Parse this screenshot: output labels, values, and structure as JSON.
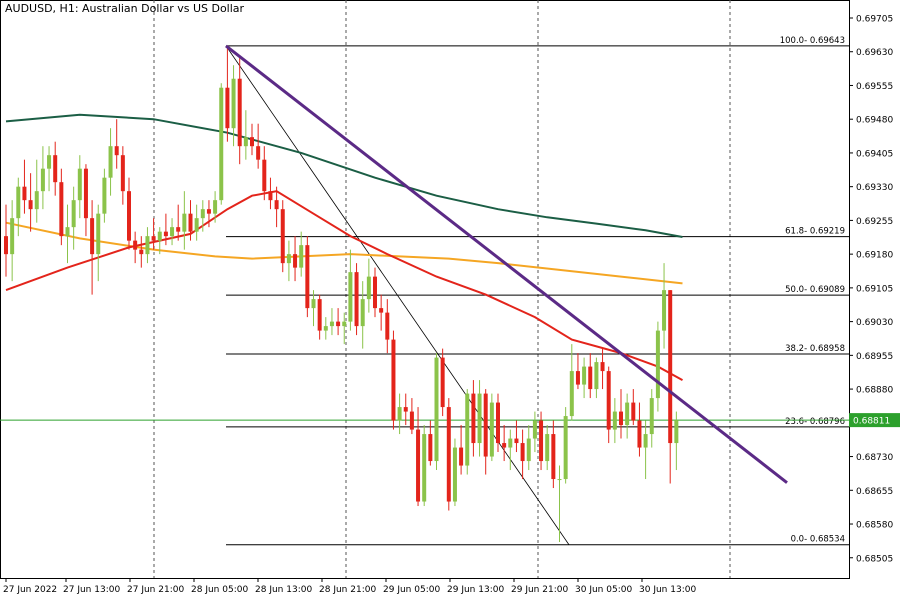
{
  "header": {
    "title": "AUDUSD, H1:  Australian Dollar vs US Dollar"
  },
  "chart_data": {
    "type": "candlestick",
    "symbol": "AUDUSD",
    "timeframe": "H1",
    "ylim": [
      0.6846,
      0.69745
    ],
    "price_ticks": [
      "0.69705",
      "0.69630",
      "0.69555",
      "0.69480",
      "0.69405",
      "0.69330",
      "0.69255",
      "0.69180",
      "0.69105",
      "0.69030",
      "0.68955",
      "0.68880",
      "0.68805",
      "0.68730",
      "0.68655",
      "0.68580",
      "0.68505"
    ],
    "time_labels": [
      "27 Jun 2022",
      "27 Jun 13:00",
      "27 Jun 21:00",
      "28 Jun 05:00",
      "28 Jun 13:00",
      "28 Jun 21:00",
      "29 Jun 05:00",
      "29 Jun 13:00",
      "29 Jun 21:00",
      "30 Jun 05:00",
      "30 Jun 13:00"
    ],
    "current_price": "0.68811",
    "current_price_value": 0.68811,
    "fibonacci": [
      {
        "label": "100.0- 0.69643",
        "price": 0.69643
      },
      {
        "label": "61.8- 0.69219",
        "price": 0.69219
      },
      {
        "label": "50.0- 0.69089",
        "price": 0.69089
      },
      {
        "label": "38.2- 0.68958",
        "price": 0.68958
      },
      {
        "label": "23.6- 0.68796",
        "price": 0.68796
      },
      {
        "label": "0.0- 0.68534",
        "price": 0.68534
      }
    ],
    "fib_start_bar": 36,
    "fib_end_bar": 88,
    "fib_anchor_high": {
      "bar": 36,
      "price": 0.69643
    },
    "fib_anchor_low": {
      "bar": 91,
      "price": 0.68534
    },
    "trendline": {
      "start": {
        "bar": 36,
        "price": 0.69643
      },
      "end": {
        "bar": 127,
        "price": 0.68672
      }
    },
    "bars": [
      {
        "o": 0.6922,
        "h": 0.6929,
        "l": 0.6913,
        "c": 0.6918
      },
      {
        "o": 0.6918,
        "h": 0.693,
        "l": 0.6912,
        "c": 0.6926
      },
      {
        "o": 0.6926,
        "h": 0.6935,
        "l": 0.6922,
        "c": 0.6933
      },
      {
        "o": 0.6933,
        "h": 0.6939,
        "l": 0.6927,
        "c": 0.693
      },
      {
        "o": 0.693,
        "h": 0.6936,
        "l": 0.6923,
        "c": 0.6928
      },
      {
        "o": 0.6928,
        "h": 0.6939,
        "l": 0.6925,
        "c": 0.6932
      },
      {
        "o": 0.6932,
        "h": 0.6942,
        "l": 0.6928,
        "c": 0.6937
      },
      {
        "o": 0.6937,
        "h": 0.6942,
        "l": 0.6932,
        "c": 0.694
      },
      {
        "o": 0.694,
        "h": 0.6943,
        "l": 0.6931,
        "c": 0.6934
      },
      {
        "o": 0.6934,
        "h": 0.6937,
        "l": 0.692,
        "c": 0.6922
      },
      {
        "o": 0.6922,
        "h": 0.6929,
        "l": 0.6916,
        "c": 0.6924
      },
      {
        "o": 0.6924,
        "h": 0.6933,
        "l": 0.6919,
        "c": 0.693
      },
      {
        "o": 0.693,
        "h": 0.694,
        "l": 0.6926,
        "c": 0.6937
      },
      {
        "o": 0.6937,
        "h": 0.6938,
        "l": 0.6922,
        "c": 0.6926
      },
      {
        "o": 0.6926,
        "h": 0.693,
        "l": 0.6909,
        "c": 0.6918
      },
      {
        "o": 0.6918,
        "h": 0.6929,
        "l": 0.6912,
        "c": 0.6927
      },
      {
        "o": 0.6927,
        "h": 0.6937,
        "l": 0.6925,
        "c": 0.6935
      },
      {
        "o": 0.6935,
        "h": 0.6946,
        "l": 0.6931,
        "c": 0.6942
      },
      {
        "o": 0.6942,
        "h": 0.6948,
        "l": 0.6937,
        "c": 0.694
      },
      {
        "o": 0.694,
        "h": 0.6942,
        "l": 0.6929,
        "c": 0.6932
      },
      {
        "o": 0.6932,
        "h": 0.6935,
        "l": 0.6919,
        "c": 0.6921
      },
      {
        "o": 0.6921,
        "h": 0.6923,
        "l": 0.6916,
        "c": 0.6919
      },
      {
        "o": 0.6919,
        "h": 0.6922,
        "l": 0.6915,
        "c": 0.6918
      },
      {
        "o": 0.6918,
        "h": 0.6924,
        "l": 0.6916,
        "c": 0.6922
      },
      {
        "o": 0.6922,
        "h": 0.6926,
        "l": 0.6919,
        "c": 0.6921
      },
      {
        "o": 0.6921,
        "h": 0.6924,
        "l": 0.6918,
        "c": 0.6923
      },
      {
        "o": 0.6923,
        "h": 0.6927,
        "l": 0.692,
        "c": 0.6922
      },
      {
        "o": 0.6922,
        "h": 0.6926,
        "l": 0.692,
        "c": 0.6924
      },
      {
        "o": 0.6924,
        "h": 0.6929,
        "l": 0.6921,
        "c": 0.6923
      },
      {
        "o": 0.6923,
        "h": 0.6932,
        "l": 0.6919,
        "c": 0.6927
      },
      {
        "o": 0.6927,
        "h": 0.693,
        "l": 0.6921,
        "c": 0.6923
      },
      {
        "o": 0.6923,
        "h": 0.6929,
        "l": 0.6921,
        "c": 0.6926
      },
      {
        "o": 0.6926,
        "h": 0.693,
        "l": 0.6923,
        "c": 0.6928
      },
      {
        "o": 0.6928,
        "h": 0.693,
        "l": 0.6924,
        "c": 0.6927
      },
      {
        "o": 0.6927,
        "h": 0.6932,
        "l": 0.6925,
        "c": 0.693
      },
      {
        "o": 0.693,
        "h": 0.6956,
        "l": 0.6929,
        "c": 0.6955
      },
      {
        "o": 0.6955,
        "h": 0.69643,
        "l": 0.6943,
        "c": 0.6946
      },
      {
        "o": 0.6946,
        "h": 0.696,
        "l": 0.6942,
        "c": 0.6957
      },
      {
        "o": 0.6957,
        "h": 0.6962,
        "l": 0.6938,
        "c": 0.6942
      },
      {
        "o": 0.6942,
        "h": 0.695,
        "l": 0.6939,
        "c": 0.6944
      },
      {
        "o": 0.6944,
        "h": 0.6947,
        "l": 0.694,
        "c": 0.6942
      },
      {
        "o": 0.6942,
        "h": 0.6947,
        "l": 0.6937,
        "c": 0.6939
      },
      {
        "o": 0.6939,
        "h": 0.6942,
        "l": 0.693,
        "c": 0.6932
      },
      {
        "o": 0.6932,
        "h": 0.6935,
        "l": 0.6928,
        "c": 0.693
      },
      {
        "o": 0.693,
        "h": 0.6933,
        "l": 0.6924,
        "c": 0.6928
      },
      {
        "o": 0.6928,
        "h": 0.693,
        "l": 0.6914,
        "c": 0.6916
      },
      {
        "o": 0.6916,
        "h": 0.6921,
        "l": 0.6912,
        "c": 0.6918
      },
      {
        "o": 0.6918,
        "h": 0.6922,
        "l": 0.6912,
        "c": 0.6915
      },
      {
        "o": 0.6915,
        "h": 0.6923,
        "l": 0.6913,
        "c": 0.692
      },
      {
        "o": 0.692,
        "h": 0.6922,
        "l": 0.6904,
        "c": 0.6906
      },
      {
        "o": 0.6906,
        "h": 0.691,
        "l": 0.6902,
        "c": 0.6908
      },
      {
        "o": 0.6908,
        "h": 0.6909,
        "l": 0.6899,
        "c": 0.6901
      },
      {
        "o": 0.6901,
        "h": 0.6904,
        "l": 0.6899,
        "c": 0.6902
      },
      {
        "o": 0.6902,
        "h": 0.6906,
        "l": 0.69,
        "c": 0.6903
      },
      {
        "o": 0.6903,
        "h": 0.6906,
        "l": 0.69,
        "c": 0.6902
      },
      {
        "o": 0.6902,
        "h": 0.6905,
        "l": 0.6898,
        "c": 0.6903
      },
      {
        "o": 0.6903,
        "h": 0.6919,
        "l": 0.6901,
        "c": 0.6914
      },
      {
        "o": 0.6914,
        "h": 0.6916,
        "l": 0.69,
        "c": 0.6902
      },
      {
        "o": 0.6902,
        "h": 0.6912,
        "l": 0.6897,
        "c": 0.6908
      },
      {
        "o": 0.6908,
        "h": 0.6917,
        "l": 0.6905,
        "c": 0.6913
      },
      {
        "o": 0.6913,
        "h": 0.6915,
        "l": 0.6904,
        "c": 0.6906
      },
      {
        "o": 0.6906,
        "h": 0.6909,
        "l": 0.6901,
        "c": 0.6905
      },
      {
        "o": 0.6905,
        "h": 0.6908,
        "l": 0.6896,
        "c": 0.6899
      },
      {
        "o": 0.6899,
        "h": 0.6901,
        "l": 0.6879,
        "c": 0.6881
      },
      {
        "o": 0.6881,
        "h": 0.6887,
        "l": 0.6878,
        "c": 0.6884
      },
      {
        "o": 0.6884,
        "h": 0.6887,
        "l": 0.688,
        "c": 0.6883
      },
      {
        "o": 0.6883,
        "h": 0.6886,
        "l": 0.6878,
        "c": 0.6879
      },
      {
        "o": 0.6879,
        "h": 0.6884,
        "l": 0.6862,
        "c": 0.6863
      },
      {
        "o": 0.6863,
        "h": 0.688,
        "l": 0.6862,
        "c": 0.6878
      },
      {
        "o": 0.6878,
        "h": 0.6881,
        "l": 0.6871,
        "c": 0.6872
      },
      {
        "o": 0.6872,
        "h": 0.6896,
        "l": 0.687,
        "c": 0.6895
      },
      {
        "o": 0.6895,
        "h": 0.6897,
        "l": 0.6882,
        "c": 0.6884
      },
      {
        "o": 0.6884,
        "h": 0.6886,
        "l": 0.6861,
        "c": 0.6863
      },
      {
        "o": 0.6863,
        "h": 0.6877,
        "l": 0.6862,
        "c": 0.6875
      },
      {
        "o": 0.6875,
        "h": 0.688,
        "l": 0.6869,
        "c": 0.6871
      },
      {
        "o": 0.6871,
        "h": 0.6888,
        "l": 0.6869,
        "c": 0.6887
      },
      {
        "o": 0.6887,
        "h": 0.689,
        "l": 0.6873,
        "c": 0.6876
      },
      {
        "o": 0.6876,
        "h": 0.689,
        "l": 0.6873,
        "c": 0.6887
      },
      {
        "o": 0.6887,
        "h": 0.6888,
        "l": 0.6869,
        "c": 0.6873
      },
      {
        "o": 0.6873,
        "h": 0.6887,
        "l": 0.6872,
        "c": 0.6885
      },
      {
        "o": 0.6885,
        "h": 0.6887,
        "l": 0.6874,
        "c": 0.6876
      },
      {
        "o": 0.6876,
        "h": 0.688,
        "l": 0.6872,
        "c": 0.6875
      },
      {
        "o": 0.6875,
        "h": 0.6879,
        "l": 0.687,
        "c": 0.6877
      },
      {
        "o": 0.6877,
        "h": 0.6881,
        "l": 0.6874,
        "c": 0.6876
      },
      {
        "o": 0.6876,
        "h": 0.6879,
        "l": 0.6868,
        "c": 0.6872
      },
      {
        "o": 0.6872,
        "h": 0.688,
        "l": 0.687,
        "c": 0.6877
      },
      {
        "o": 0.6877,
        "h": 0.6883,
        "l": 0.6874,
        "c": 0.6881
      },
      {
        "o": 0.6881,
        "h": 0.6883,
        "l": 0.687,
        "c": 0.6872
      },
      {
        "o": 0.6872,
        "h": 0.688,
        "l": 0.687,
        "c": 0.6878
      },
      {
        "o": 0.6878,
        "h": 0.6881,
        "l": 0.6866,
        "c": 0.6868
      },
      {
        "o": 0.6868,
        "h": 0.6871,
        "l": 0.6854,
        "c": 0.6868
      },
      {
        "o": 0.6868,
        "h": 0.6884,
        "l": 0.6867,
        "c": 0.6882
      },
      {
        "o": 0.6882,
        "h": 0.6898,
        "l": 0.6881,
        "c": 0.6892
      },
      {
        "o": 0.6892,
        "h": 0.6896,
        "l": 0.6888,
        "c": 0.6889
      },
      {
        "o": 0.6889,
        "h": 0.6895,
        "l": 0.6886,
        "c": 0.6893
      },
      {
        "o": 0.6893,
        "h": 0.6896,
        "l": 0.6886,
        "c": 0.6888
      },
      {
        "o": 0.6888,
        "h": 0.6895,
        "l": 0.6886,
        "c": 0.6894
      },
      {
        "o": 0.6894,
        "h": 0.6897,
        "l": 0.6888,
        "c": 0.6892
      },
      {
        "o": 0.6892,
        "h": 0.6893,
        "l": 0.6876,
        "c": 0.6879
      },
      {
        "o": 0.6879,
        "h": 0.6886,
        "l": 0.6876,
        "c": 0.6883
      },
      {
        "o": 0.6883,
        "h": 0.6888,
        "l": 0.6877,
        "c": 0.688
      },
      {
        "o": 0.688,
        "h": 0.6887,
        "l": 0.6877,
        "c": 0.6885
      },
      {
        "o": 0.6885,
        "h": 0.6888,
        "l": 0.688,
        "c": 0.6881
      },
      {
        "o": 0.6881,
        "h": 0.6885,
        "l": 0.6873,
        "c": 0.6875
      },
      {
        "o": 0.6875,
        "h": 0.6881,
        "l": 0.6868,
        "c": 0.6878
      },
      {
        "o": 0.6878,
        "h": 0.6888,
        "l": 0.6875,
        "c": 0.6886
      },
      {
        "o": 0.6886,
        "h": 0.6903,
        "l": 0.6883,
        "c": 0.6901
      },
      {
        "o": 0.6901,
        "h": 0.6916,
        "l": 0.6897,
        "c": 0.691
      },
      {
        "o": 0.691,
        "h": 0.691,
        "l": 0.6867,
        "c": 0.6876
      },
      {
        "o": 0.6876,
        "h": 0.6883,
        "l": 0.687,
        "c": 0.68811
      }
    ],
    "ma_series": [
      {
        "color": "#1b5e45",
        "values": [
          [
            0,
            0.69475
          ],
          [
            12,
            0.6949
          ],
          [
            24,
            0.6948
          ],
          [
            36,
            0.6945
          ],
          [
            48,
            0.69405
          ],
          [
            60,
            0.6935
          ],
          [
            70,
            0.6931
          ],
          [
            80,
            0.6928
          ],
          [
            88,
            0.69262
          ],
          [
            96,
            0.69248
          ],
          [
            104,
            0.69233
          ],
          [
            110,
            0.69218
          ]
        ]
      },
      {
        "color": "#f5a623",
        "values": [
          [
            0,
            0.6925
          ],
          [
            12,
            0.69215
          ],
          [
            24,
            0.6919
          ],
          [
            34,
            0.69175
          ],
          [
            40,
            0.6917
          ],
          [
            48,
            0.69175
          ],
          [
            56,
            0.6918
          ],
          [
            64,
            0.69175
          ],
          [
            72,
            0.6917
          ],
          [
            80,
            0.6916
          ],
          [
            90,
            0.69145
          ],
          [
            100,
            0.6913
          ],
          [
            110,
            0.69115
          ]
        ]
      },
      {
        "color": "#e3241b",
        "values": [
          [
            0,
            0.691
          ],
          [
            10,
            0.6915
          ],
          [
            20,
            0.69195
          ],
          [
            30,
            0.69225
          ],
          [
            36,
            0.6928
          ],
          [
            40,
            0.6931
          ],
          [
            44,
            0.6932
          ],
          [
            50,
            0.6927
          ],
          [
            56,
            0.6922
          ],
          [
            62,
            0.6918
          ],
          [
            70,
            0.6913
          ],
          [
            78,
            0.6909
          ],
          [
            86,
            0.6904
          ],
          [
            92,
            0.6899
          ],
          [
            100,
            0.6896
          ],
          [
            106,
            0.6893
          ],
          [
            110,
            0.689
          ]
        ]
      }
    ],
    "colors": {
      "up": "#8bc34a",
      "down": "#e3241b",
      "trendline": "#5b2a86",
      "current_line": "#2ca02c",
      "grid": "#555555"
    }
  }
}
